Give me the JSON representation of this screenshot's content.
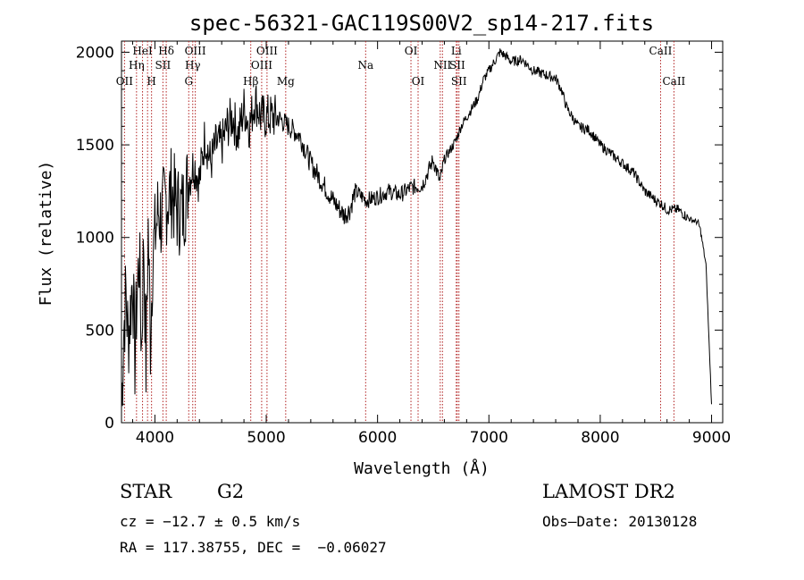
{
  "chart_data": {
    "type": "line",
    "title": "spec-56321-GAC119S00V2_sp14-217.fits",
    "xlabel": "Wavelength (Å)",
    "ylabel": "Flux (relative)",
    "xlim": [
      3700,
      9100
    ],
    "ylim": [
      0,
      2060
    ],
    "xticks": [
      4000,
      5000,
      6000,
      7000,
      8000,
      9000
    ],
    "yticks": [
      0,
      500,
      1000,
      1500,
      2000
    ],
    "grid": false,
    "series": [
      {
        "color": "#000000",
        "x": [
          3700,
          3720,
          3740,
          3760,
          3780,
          3800,
          3820,
          3840,
          3860,
          3880,
          3900,
          3920,
          3940,
          3960,
          3980,
          4000,
          4030,
          4060,
          4100,
          4150,
          4200,
          4250,
          4300,
          4350,
          4400,
          4450,
          4500,
          4550,
          4600,
          4650,
          4700,
          4750,
          4800,
          4850,
          4900,
          4950,
          5000,
          5100,
          5200,
          5300,
          5400,
          5500,
          5600,
          5700,
          5750,
          5800,
          5900,
          6000,
          6100,
          6200,
          6300,
          6400,
          6500,
          6560,
          6600,
          6650,
          6700,
          6750,
          6800,
          6850,
          6900,
          6950,
          7000,
          7050,
          7100,
          7150,
          7200,
          7300,
          7400,
          7500,
          7600,
          7650,
          7700,
          7800,
          7900,
          8000,
          8100,
          8200,
          8300,
          8400,
          8500,
          8550,
          8600,
          8700,
          8800,
          8880,
          8900,
          8950,
          8980,
          9000
        ],
        "y": [
          80,
          500,
          700,
          450,
          600,
          800,
          350,
          700,
          900,
          400,
          1000,
          300,
          1050,
          450,
          900,
          1000,
          1150,
          1100,
          1200,
          1250,
          1150,
          1150,
          1300,
          1400,
          1300,
          1550,
          1400,
          1500,
          1500,
          1600,
          1650,
          1550,
          1700,
          1600,
          1750,
          1650,
          1650,
          1650,
          1600,
          1550,
          1400,
          1300,
          1200,
          1120,
          1150,
          1250,
          1200,
          1220,
          1250,
          1230,
          1270,
          1280,
          1420,
          1300,
          1420,
          1470,
          1520,
          1600,
          1650,
          1700,
          1750,
          1850,
          1900,
          1950,
          2000,
          1980,
          1950,
          1960,
          1900,
          1880,
          1860,
          1800,
          1700,
          1600,
          1580,
          1500,
          1450,
          1400,
          1350,
          1250,
          1200,
          1180,
          1150,
          1150,
          1100,
          1080,
          1040,
          850,
          400,
          100
        ]
      }
    ],
    "lines": [
      {
        "wl": 3727,
        "label": "OII",
        "row": 3
      },
      {
        "wl": 3835,
        "label": "Hη",
        "row": 2
      },
      {
        "wl": 3889,
        "label": "HeI",
        "row": 1
      },
      {
        "wl": 3934,
        "label": "",
        "row": 0
      },
      {
        "wl": 3970,
        "label": "H",
        "row": 3
      },
      {
        "wl": 4072,
        "label": "SII",
        "row": 2
      },
      {
        "wl": 4102,
        "label": "Hδ",
        "row": 1
      },
      {
        "wl": 4304,
        "label": "G",
        "row": 3
      },
      {
        "wl": 4340,
        "label": "Hγ",
        "row": 2
      },
      {
        "wl": 4363,
        "label": "OIII",
        "row": 1
      },
      {
        "wl": 4861,
        "label": "Hβ",
        "row": 3
      },
      {
        "wl": 4959,
        "label": "OIII",
        "row": 2
      },
      {
        "wl": 5007,
        "label": "OIII",
        "row": 1
      },
      {
        "wl": 5175,
        "label": "Mg",
        "row": 3
      },
      {
        "wl": 5893,
        "label": "Na",
        "row": 2
      },
      {
        "wl": 6300,
        "label": "OI",
        "row": 1
      },
      {
        "wl": 6364,
        "label": "OI",
        "row": 3
      },
      {
        "wl": 6563,
        "label": "",
        "row": 0
      },
      {
        "wl": 6583,
        "label": "NII",
        "row": 2
      },
      {
        "wl": 6707,
        "label": "Li",
        "row": 1
      },
      {
        "wl": 6716,
        "label": "SII",
        "row": 2
      },
      {
        "wl": 6731,
        "label": "SII",
        "row": 3
      },
      {
        "wl": 8542,
        "label": "CaII",
        "row": 1
      },
      {
        "wl": 8662,
        "label": "CaII",
        "row": 3
      }
    ]
  },
  "info": {
    "class": "STAR",
    "subclass": "G2",
    "survey": "LAMOST DR2",
    "redshift": "cz = −12.7 ± 0.5 km/s",
    "obs_date": "Obs–Date: 20130128",
    "coords": "RA = 117.38755, DEC =  −0.06027"
  }
}
